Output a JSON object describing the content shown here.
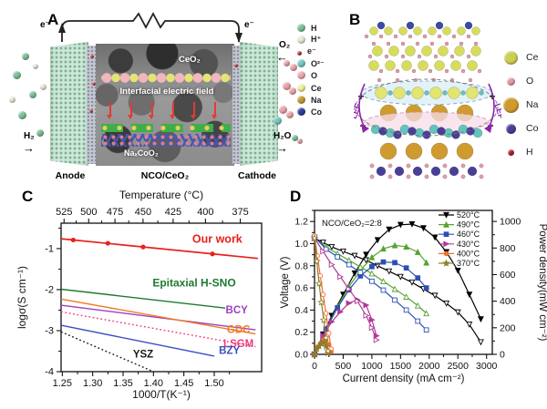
{
  "panel_a": {
    "label": "A",
    "electron_left": "e⁻",
    "electron_right": "e⁻",
    "oxygen_in": "O₂",
    "hydrogen_in": "H₂",
    "water_out": "H₂O",
    "ceo2_label": "CeO₂",
    "field_label": "Interfacial electric field",
    "nco_label": "NaₓCoO₂",
    "anode_label": "Anode",
    "membrane_label": "NCO/CeO₂",
    "cathode_label": "Cathode",
    "legend": [
      {
        "label": "H",
        "color": "#7cc29a",
        "size": 9
      },
      {
        "label": "H⁺",
        "color": "#ece8dc",
        "size": 9
      },
      {
        "label": "e⁻",
        "color": "#c43030",
        "size": 5
      },
      {
        "label": "O²⁻",
        "color": "#76c8c4",
        "size": 9
      },
      {
        "label": "O",
        "color": "#edaab2",
        "size": 9
      },
      {
        "label": "Ce",
        "color": "#f2f0a2",
        "size": 9
      },
      {
        "label": "Na",
        "color": "#c89d35",
        "size": 9
      },
      {
        "label": "Co",
        "color": "#31409a",
        "size": 9
      }
    ]
  },
  "panel_b": {
    "label": "B",
    "plus": "+",
    "minus": "−",
    "lef_left": "LEF",
    "lef_right": "LEF",
    "legend": [
      {
        "label": "Ce",
        "color": "#ccd052",
        "size": 15
      },
      {
        "label": "O",
        "color": "#e69aa6",
        "size": 9
      },
      {
        "label": "Na",
        "color": "#cf9b2f",
        "size": 17
      },
      {
        "label": "Co",
        "color": "#4a3f97",
        "size": 11
      },
      {
        "label": "H",
        "color": "#b3202a",
        "size": 7
      }
    ]
  },
  "panel_c_label": "C",
  "panel_d_label": "D",
  "chart_data": [
    {
      "type": "line",
      "panel": "C",
      "top_axis_label": "Temperature (°C)",
      "top_ticks": [
        525,
        500,
        475,
        450,
        425,
        400,
        375
      ],
      "xlabel": "1000/T(K⁻¹)",
      "ylabel": "logσ(S cm⁻¹)",
      "xlim": [
        1.248,
        1.578
      ],
      "ylim": [
        -4,
        -0.38
      ],
      "xticks": [
        1.25,
        1.3,
        1.35,
        1.4,
        1.45,
        1.5
      ],
      "yticks": [
        -1,
        -2,
        -3,
        -4
      ],
      "series": [
        {
          "name": "Our work",
          "color": "#e8211d",
          "style": "solid",
          "x": [
            1.248,
            1.572
          ],
          "y": [
            -0.76,
            -1.24
          ],
          "points": [
            [
              1.268,
              -0.79
            ],
            [
              1.325,
              -0.87
            ],
            [
              1.383,
              -0.96
            ],
            [
              1.497,
              -1.13
            ]
          ],
          "label_pos": [
            1.505,
            -0.86
          ],
          "label_size": 12.5
        },
        {
          "name": "Epitaxial H-SNO",
          "color": "#1f7a33",
          "style": "solid",
          "x": [
            1.248,
            1.518
          ],
          "y": [
            -1.99,
            -2.45
          ],
          "label_pos": [
            1.467,
            -1.92
          ],
          "label_size": 12
        },
        {
          "name": "BCY",
          "color": "#9c3fbf",
          "style": "solid",
          "x": [
            1.248,
            1.568
          ],
          "y": [
            -2.38,
            -2.98
          ],
          "label_pos": [
            1.537,
            -2.58
          ],
          "label_size": 11.5
        },
        {
          "name": "GDC",
          "color": "#f07b22",
          "style": "solid",
          "x": [
            1.248,
            1.568
          ],
          "y": [
            -2.23,
            -3.08
          ],
          "label_pos": [
            1.54,
            -3.06
          ],
          "label_size": 11.5
        },
        {
          "name": "LSGM",
          "color": "#ee3d7f",
          "style": "dotted",
          "x": [
            1.248,
            1.568
          ],
          "y": [
            -2.54,
            -3.39
          ],
          "label_pos": [
            1.54,
            -3.4
          ],
          "label_size": 11.5
        },
        {
          "name": "BZY",
          "color": "#3a50c0",
          "style": "solid",
          "x": [
            1.248,
            1.5
          ],
          "y": [
            -2.87,
            -3.62
          ],
          "label_pos": [
            1.525,
            -3.57
          ],
          "label_size": 11.5
        },
        {
          "name": "YSZ",
          "color": "#1a1a1a",
          "style": "dotted",
          "x": [
            1.248,
            1.4
          ],
          "y": [
            -3.03,
            -4.0
          ],
          "label_pos": [
            1.383,
            -3.66
          ],
          "label_size": 11.5
        }
      ]
    },
    {
      "type": "line",
      "panel": "D",
      "annotation": "NCO/CeO₂=2:8",
      "xlabel": "Current density (mA cm⁻²)",
      "ylabel_left": "Voltage (V)",
      "ylabel_right": "Power density(mW cm⁻²)",
      "xlim": [
        0,
        3100
      ],
      "xticks": [
        0,
        500,
        1000,
        1500,
        2000,
        2500,
        3000
      ],
      "ylim_left": [
        0,
        1.3
      ],
      "yticks_left": [
        0,
        0.2,
        0.4,
        0.6,
        0.8,
        1,
        1.2
      ],
      "ylim_right": [
        0,
        1083
      ],
      "yticks_right": [
        0,
        200,
        400,
        600,
        800,
        1000
      ],
      "series": [
        {
          "name": "520°C",
          "color": "#000000",
          "marker": "tri-down",
          "voltage": {
            "x": [
              0,
              150,
              300,
              500,
              700,
              900,
              1100,
              1300,
              1500,
              1700,
              1900,
              2100,
              2300,
              2500,
              2700,
              2900
            ],
            "y": [
              1.05,
              1.01,
              0.97,
              0.93,
              0.89,
              0.85,
              0.8,
              0.75,
              0.7,
              0.65,
              0.59,
              0.53,
              0.46,
              0.38,
              0.27,
              0.11
            ]
          },
          "power": {
            "x": [
              0,
              150,
              300,
              500,
              700,
              900,
              1100,
              1300,
              1500,
              1700,
              1900,
              2100,
              2300,
              2500,
              2700,
              2900
            ],
            "y": [
              0,
              150,
              290,
              450,
              610,
              750,
              860,
              940,
              975,
              980,
              950,
              880,
              770,
              630,
              450,
              265
            ]
          }
        },
        {
          "name": "490°C",
          "color": "#55a332",
          "marker": "tri-up",
          "voltage": {
            "x": [
              0,
              200,
              400,
              600,
              800,
              1000,
              1200,
              1400,
              1600,
              1800,
              1950
            ],
            "y": [
              1.05,
              0.97,
              0.91,
              0.85,
              0.79,
              0.73,
              0.66,
              0.59,
              0.52,
              0.44,
              0.37
            ]
          },
          "power": {
            "x": [
              0,
              200,
              400,
              600,
              800,
              1000,
              1200,
              1400,
              1600,
              1800,
              1950
            ],
            "y": [
              0,
              190,
              360,
              510,
              630,
              730,
              795,
              820,
              810,
              770,
              690
            ]
          }
        },
        {
          "name": "460°C",
          "color": "#2e4fb2",
          "marker": "square",
          "voltage": {
            "x": [
              0,
              200,
              400,
              600,
              800,
              1000,
              1200,
              1400,
              1600,
              1800,
              1950
            ],
            "y": [
              1.06,
              0.95,
              0.88,
              0.81,
              0.74,
              0.66,
              0.58,
              0.49,
              0.4,
              0.3,
              0.22
            ]
          },
          "power": {
            "x": [
              0,
              200,
              400,
              600,
              800,
              1000,
              1200,
              1400,
              1600,
              1800,
              1950
            ],
            "y": [
              0,
              190,
              350,
              485,
              590,
              660,
              695,
              690,
              650,
              575,
              500
            ]
          }
        },
        {
          "name": "430°C",
          "color": "#b03a96",
          "marker": "tri-right",
          "voltage": {
            "x": [
              0,
              150,
              300,
              450,
              600,
              750,
              900,
              1000,
              1080
            ],
            "y": [
              1.05,
              0.93,
              0.81,
              0.7,
              0.59,
              0.48,
              0.35,
              0.24,
              0.13
            ]
          },
          "power": {
            "x": [
              0,
              150,
              300,
              450,
              600,
              750,
              900,
              1000,
              1080
            ],
            "y": [
              0,
              140,
              245,
              320,
              385,
              410,
              370,
              260,
              140
            ]
          }
        },
        {
          "name": "400°C",
          "color": "#f26f2f",
          "marker": "circle",
          "voltage": {
            "x": [
              0,
              50,
              100,
              150,
              200,
              250,
              290
            ],
            "y": [
              1.07,
              0.89,
              0.71,
              0.54,
              0.37,
              0.19,
              0.05
            ]
          },
          "power": {
            "x": [
              0,
              50,
              100,
              150,
              200,
              250,
              290
            ],
            "y": [
              0,
              50,
              80,
              105,
              108,
              75,
              20
            ]
          }
        },
        {
          "name": "370°C",
          "color": "#8f7d2a",
          "marker": "star",
          "voltage": {
            "x": [
              0,
              40,
              80,
              120,
              160,
              200,
              235
            ],
            "y": [
              1.05,
              0.84,
              0.64,
              0.47,
              0.31,
              0.15,
              0.03
            ]
          },
          "power": {
            "x": [
              0,
              40,
              80,
              120,
              160,
              200,
              235
            ],
            "y": [
              0,
              40,
              62,
              80,
              88,
              60,
              10
            ]
          }
        }
      ]
    }
  ]
}
